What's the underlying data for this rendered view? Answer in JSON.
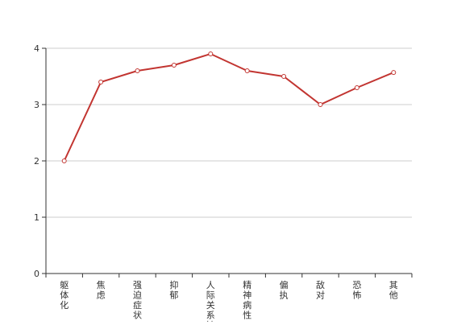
{
  "chart_data": {
    "type": "line",
    "categories": [
      "躯体化",
      "焦虑",
      "强迫症状",
      "抑郁",
      "人际关系敏感",
      "精神病性",
      "偏执",
      "敌对",
      "恐怖",
      "其他"
    ],
    "series": [
      {
        "values": [
          2.0,
          3.4,
          3.6,
          3.7,
          3.9,
          3.6,
          3.5,
          3.0,
          3.3,
          3.57
        ]
      }
    ],
    "ylim": [
      0,
      4
    ],
    "yticks": [
      0,
      1,
      2,
      3,
      4
    ],
    "grid": true,
    "line_color": "#c23531",
    "point_fill": "#ffffff",
    "grid_color": "#cccccc",
    "axis_color": "#333333",
    "label_color": "#333333"
  }
}
